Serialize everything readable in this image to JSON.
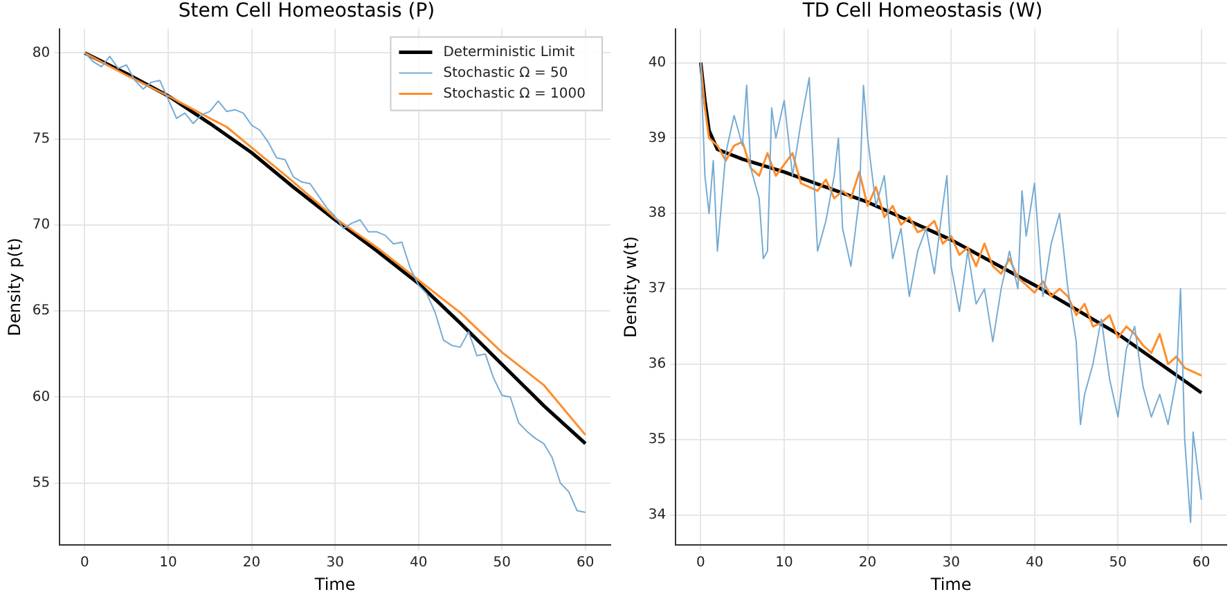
{
  "chart_data": [
    {
      "type": "line",
      "title": "Stem Cell Homeostasis (P)",
      "xlabel": "Time",
      "ylabel": "Density p(t)",
      "xlim": [
        -3,
        63
      ],
      "ylim": [
        51.4,
        81.4
      ],
      "xticks": [
        0,
        10,
        20,
        30,
        40,
        50,
        60
      ],
      "yticks": [
        55,
        60,
        65,
        70,
        75,
        80
      ],
      "grid": true,
      "legend": "top right",
      "marker": "none",
      "line_style": "solid",
      "series": [
        {
          "name": "Stochastic Ω = 50",
          "color": "#76abd3",
          "x": [
            0,
            1,
            2,
            3,
            4,
            5,
            6,
            7,
            8,
            9,
            10,
            11,
            12,
            13,
            14,
            15,
            16,
            17,
            18,
            19,
            20,
            21,
            22,
            23,
            24,
            25,
            26,
            27,
            28,
            29,
            30,
            31,
            32,
            33,
            34,
            35,
            36,
            37,
            38,
            39,
            40,
            41,
            42,
            43,
            44,
            45,
            46,
            47,
            48,
            49,
            50,
            51,
            52,
            53,
            54,
            55,
            56,
            57,
            58,
            59,
            60
          ],
          "values": [
            80,
            79.5,
            79.2,
            79.8,
            79.1,
            79.3,
            78.4,
            77.9,
            78.3,
            78.4,
            77.3,
            76.2,
            76.5,
            75.9,
            76.4,
            76.6,
            77.2,
            76.6,
            76.7,
            76.5,
            75.8,
            75.5,
            74.8,
            73.9,
            73.8,
            72.8,
            72.5,
            72.4,
            71.7,
            71.0,
            70.5,
            69.8,
            70.1,
            70.3,
            69.6,
            69.6,
            69.4,
            68.9,
            69.0,
            67.5,
            66.5,
            66.0,
            64.9,
            63.3,
            63.0,
            62.9,
            63.8,
            62.4,
            62.5,
            61.1,
            60.1,
            60.0,
            58.5,
            58.0,
            57.6,
            57.3,
            56.5,
            55.0,
            54.5,
            53.4,
            53.3
          ]
        },
        {
          "name": "Stochastic Ω = 1000",
          "color": "#ff8c2a",
          "x": [
            0,
            5,
            10,
            15,
            17,
            20,
            25,
            30,
            35,
            40,
            45,
            50,
            55,
            60
          ],
          "values": [
            80,
            78.7,
            77.5,
            76.2,
            75.7,
            74.5,
            72.5,
            70.4,
            68.7,
            66.8,
            64.9,
            62.6,
            60.7,
            57.8
          ]
        },
        {
          "name": "Deterministic Limit",
          "color": "#000000",
          "x": [
            0,
            5,
            10,
            15,
            20,
            25,
            30,
            35,
            40,
            45,
            50,
            55,
            60
          ],
          "values": [
            80,
            78.8,
            77.5,
            75.9,
            74.2,
            72.2,
            70.3,
            68.5,
            66.6,
            64.3,
            61.9,
            59.5,
            57.3
          ]
        }
      ]
    },
    {
      "type": "line",
      "title": "TD Cell Homeostasis (W)",
      "xlabel": "Time",
      "ylabel": "Density w(t)",
      "xlim": [
        -3,
        63
      ],
      "ylim": [
        33.6,
        40.45
      ],
      "xticks": [
        0,
        10,
        20,
        30,
        40,
        50,
        60
      ],
      "yticks": [
        34,
        35,
        36,
        37,
        38,
        39,
        40
      ],
      "grid": true,
      "marker": "none",
      "line_style": "solid",
      "series": [
        {
          "color": "#76abd3",
          "x": [
            0,
            0.5,
            1,
            1.5,
            2,
            3,
            4,
            5,
            5.5,
            6,
            7,
            7.5,
            8,
            8.5,
            9,
            10,
            11,
            12,
            13,
            13.5,
            14,
            15,
            16,
            16.5,
            17,
            18,
            19,
            19.5,
            20,
            21,
            22,
            23,
            24,
            25,
            26,
            27,
            28,
            29,
            29.5,
            30,
            31,
            32,
            33,
            34,
            35,
            36,
            37,
            38,
            38.5,
            39,
            40,
            41,
            42,
            43,
            44,
            45,
            45.5,
            46,
            47,
            48,
            49,
            50,
            51,
            52,
            53,
            54,
            55,
            56,
            57,
            57.5,
            58,
            58.5,
            58.7,
            59,
            60
          ],
          "values": [
            40,
            38.5,
            38.0,
            38.7,
            37.5,
            38.8,
            39.3,
            38.9,
            39.7,
            38.6,
            38.2,
            37.4,
            37.5,
            39.4,
            39.0,
            39.5,
            38.5,
            39.2,
            39.8,
            38.6,
            37.5,
            37.9,
            38.5,
            39.0,
            37.8,
            37.3,
            38.2,
            39.7,
            39.0,
            38.1,
            38.5,
            37.4,
            37.8,
            36.9,
            37.5,
            37.8,
            37.2,
            38.1,
            38.5,
            37.3,
            36.7,
            37.5,
            36.8,
            37.0,
            36.3,
            37.0,
            37.5,
            37.0,
            38.3,
            37.7,
            38.4,
            36.9,
            37.6,
            38.0,
            37.0,
            36.3,
            35.2,
            35.6,
            36.0,
            36.6,
            35.8,
            35.3,
            36.2,
            36.5,
            35.7,
            35.3,
            35.6,
            35.2,
            35.8,
            37.0,
            35.0,
            34.2,
            33.9,
            35.1,
            34.2
          ]
        },
        {
          "color": "#ff8c2a",
          "x": [
            0,
            0.5,
            1,
            2,
            3,
            4,
            5,
            6,
            7,
            8,
            9,
            10,
            11,
            12,
            13,
            14,
            15,
            16,
            17,
            18,
            19,
            20,
            21,
            22,
            23,
            24,
            25,
            26,
            27,
            28,
            29,
            30,
            31,
            32,
            33,
            34,
            35,
            36,
            37,
            38,
            39,
            40,
            41,
            42,
            43,
            44,
            45,
            46,
            47,
            48,
            49,
            50,
            51,
            52,
            53,
            54,
            55,
            56,
            57,
            58,
            59,
            60
          ],
          "values": [
            40,
            39.4,
            39.0,
            38.9,
            38.7,
            38.9,
            38.95,
            38.6,
            38.5,
            38.8,
            38.5,
            38.65,
            38.8,
            38.4,
            38.35,
            38.3,
            38.45,
            38.2,
            38.3,
            38.2,
            38.55,
            38.1,
            38.35,
            37.95,
            38.1,
            37.85,
            37.95,
            37.75,
            37.8,
            37.9,
            37.6,
            37.7,
            37.45,
            37.55,
            37.3,
            37.6,
            37.3,
            37.2,
            37.4,
            37.15,
            37.05,
            36.95,
            37.1,
            36.9,
            37.0,
            36.9,
            36.65,
            36.8,
            36.5,
            36.55,
            36.65,
            36.35,
            36.5,
            36.4,
            36.25,
            36.15,
            36.4,
            36.0,
            36.1,
            35.95,
            35.9,
            35.85
          ]
        },
        {
          "color": "#000000",
          "x": [
            0,
            0.5,
            1,
            2,
            5,
            10,
            20,
            30,
            40,
            50,
            60
          ],
          "values": [
            40,
            39.5,
            39.1,
            38.85,
            38.72,
            38.55,
            38.15,
            37.65,
            37.05,
            36.4,
            35.62
          ]
        }
      ]
    }
  ]
}
